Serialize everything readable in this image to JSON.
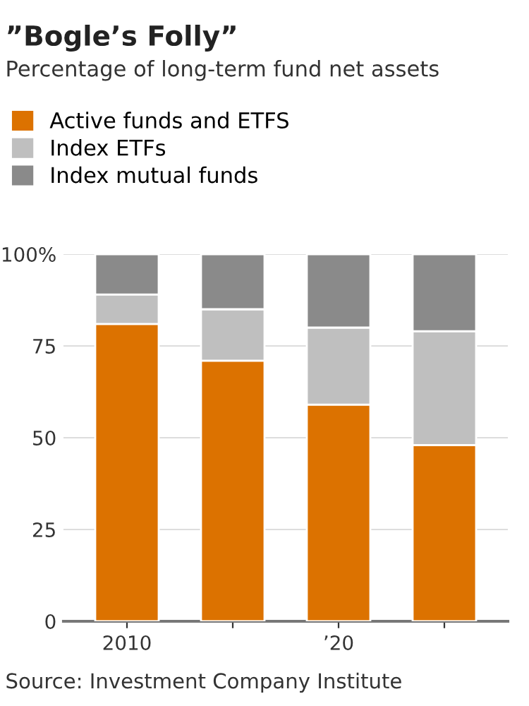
{
  "chart_data": {
    "type": "bar",
    "stacked": true,
    "title": "”Bogle’s Folly”",
    "subtitle": "Percentage of long-term fund net assets",
    "categories": [
      "2010",
      null,
      "’20",
      null
    ],
    "series": [
      {
        "name": "Active funds and ETFS",
        "color": "#dc7200",
        "values": [
          81,
          71,
          59,
          48
        ]
      },
      {
        "name": "Index ETFs",
        "color": "#bfbfbf",
        "values": [
          8,
          14,
          21,
          31
        ]
      },
      {
        "name": "Index mutual funds",
        "color": "#8a8a8a",
        "values": [
          11,
          15,
          20,
          21
        ]
      }
    ],
    "ylim": [
      0,
      100
    ],
    "yticks": [
      0,
      25,
      50,
      75,
      {
        "value": 100,
        "label": "100%"
      }
    ],
    "grid": "y",
    "legend": "top left",
    "annotations": [
      "Source: Investment Company Institute"
    ]
  }
}
